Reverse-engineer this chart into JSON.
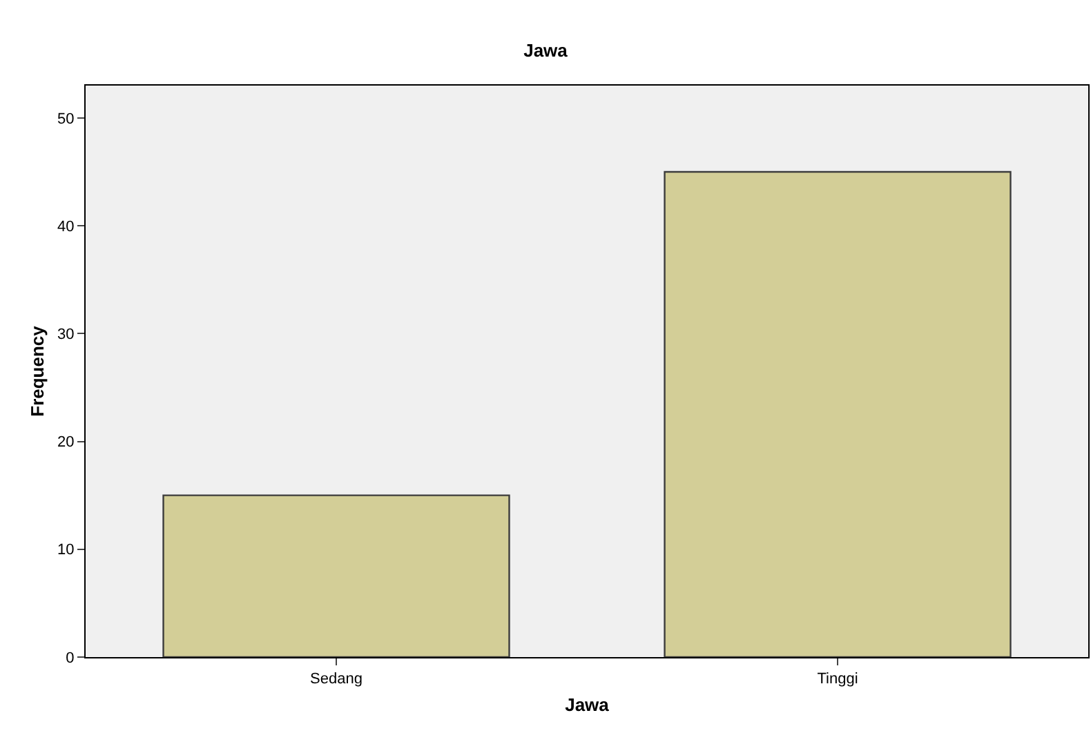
{
  "chart_data": {
    "type": "bar",
    "title": "Jawa",
    "xlabel": "Jawa",
    "ylabel": "Frequency",
    "categories": [
      "Sedang",
      "Tinggi"
    ],
    "values": [
      15,
      45
    ],
    "color": "#d3ce97",
    "ylim": [
      0,
      53
    ],
    "yticks": [
      0,
      10,
      20,
      30,
      40,
      50
    ],
    "grid": false,
    "legend": false
  }
}
